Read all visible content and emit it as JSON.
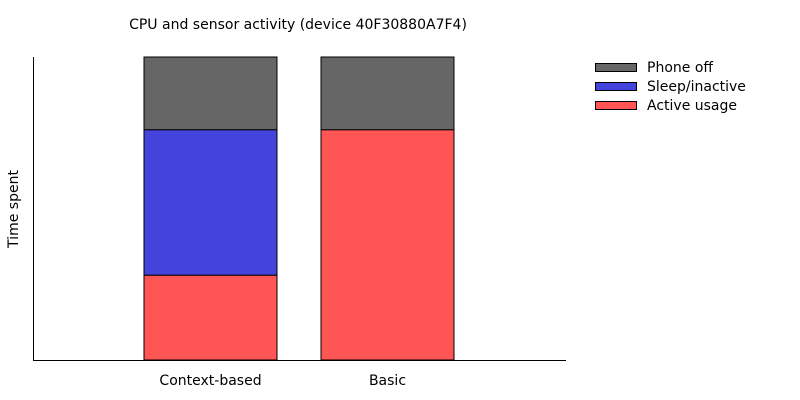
{
  "chart_data": {
    "type": "bar",
    "stacked": true,
    "title": "CPU and sensor activity (device 40F30880A7F4)",
    "xlabel": "",
    "ylabel": "Time spent",
    "categories": [
      "Context-based",
      "Basic"
    ],
    "series": [
      {
        "name": "Active usage",
        "color": "#ff5555",
        "values": [
          0.28,
          0.76
        ]
      },
      {
        "name": "Sleep/inactive",
        "color": "#4444dd",
        "values": [
          0.48,
          0.0
        ]
      },
      {
        "name": "Phone off",
        "color": "#666666",
        "values": [
          0.24,
          0.24
        ]
      }
    ],
    "legend_order": [
      "Phone off",
      "Sleep/inactive",
      "Active usage"
    ],
    "ylim": [
      0,
      1
    ],
    "grid": false,
    "legend_position": "outside-right"
  }
}
